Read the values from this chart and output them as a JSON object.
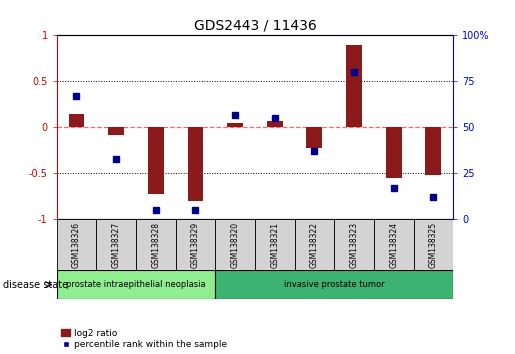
{
  "title": "GDS2443 / 11436",
  "samples": [
    "GSM138326",
    "GSM138327",
    "GSM138328",
    "GSM138329",
    "GSM138320",
    "GSM138321",
    "GSM138322",
    "GSM138323",
    "GSM138324",
    "GSM138325"
  ],
  "log2_ratio": [
    0.15,
    -0.08,
    -0.72,
    -0.8,
    0.05,
    0.07,
    -0.22,
    0.9,
    -0.55,
    -0.52
  ],
  "percentile_rank": [
    67,
    33,
    5,
    5,
    57,
    55,
    37,
    80,
    17,
    12
  ],
  "disease_groups": [
    {
      "label": "prostate intraepithelial neoplasia",
      "start": 0,
      "end": 4,
      "color": "#90EE90"
    },
    {
      "label": "invasive prostate tumor",
      "start": 4,
      "end": 10,
      "color": "#3CB371"
    }
  ],
  "bar_color": "#8B1A1A",
  "dot_color": "#00008B",
  "zero_line_color": "#FF6666",
  "grid_color": "#000000",
  "ylim_left": [
    -1,
    1
  ],
  "ylim_right": [
    0,
    100
  ],
  "yticks_left": [
    -1,
    -0.5,
    0,
    0.5,
    1
  ],
  "yticks_right": [
    0,
    25,
    50,
    75,
    100
  ],
  "legend_items": [
    {
      "label": "log2 ratio",
      "color": "#8B1A1A"
    },
    {
      "label": "percentile rank within the sample",
      "color": "#00008B"
    }
  ],
  "disease_state_label": "disease state"
}
